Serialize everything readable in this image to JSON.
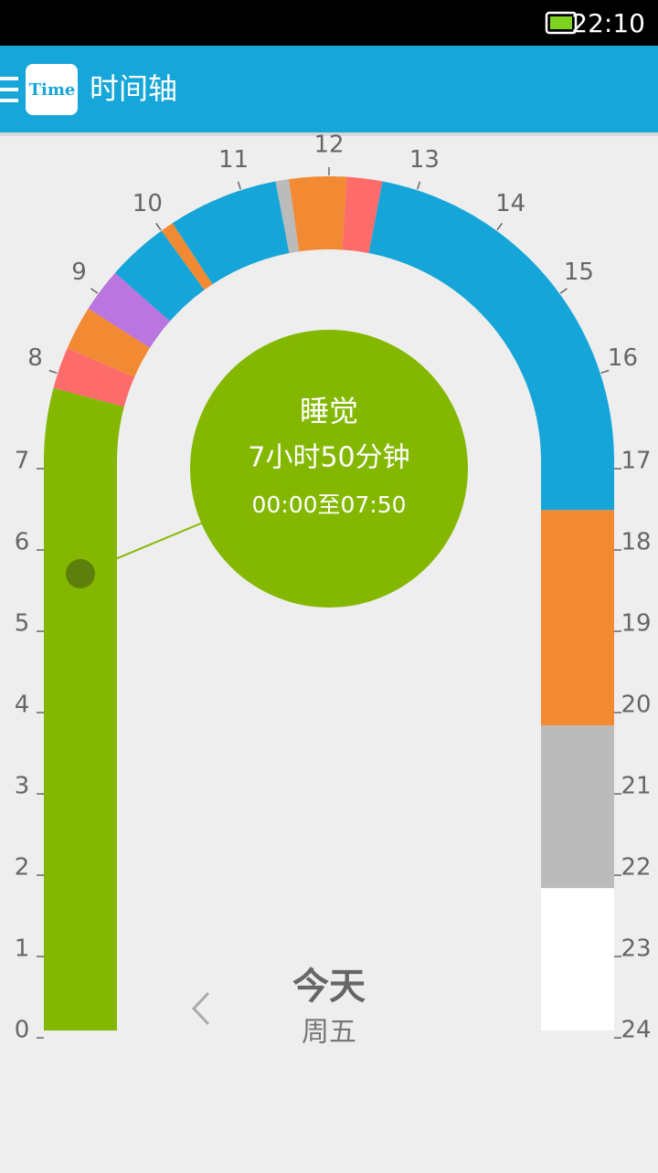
{
  "status_bar": {
    "time": "22:10"
  },
  "app_bar": {
    "icon_text": "Time",
    "title": "时间轴"
  },
  "timeline": {
    "hour_labels": [
      "0",
      "1",
      "2",
      "3",
      "4",
      "5",
      "6",
      "7",
      "8",
      "9",
      "10",
      "11",
      "12",
      "13",
      "14",
      "15",
      "16",
      "17",
      "18",
      "19",
      "20",
      "21",
      "22",
      "23",
      "24"
    ],
    "segments": [
      {
        "start": 0,
        "end": 7.83,
        "color": "#84b800"
      },
      {
        "start": 7.83,
        "end": 8.3,
        "color": "#fd6b6b"
      },
      {
        "start": 8.3,
        "end": 8.8,
        "color": "#f28a33"
      },
      {
        "start": 8.8,
        "end": 9.3,
        "color": "#ba75de"
      },
      {
        "start": 9.3,
        "end": 10.0,
        "color": "#16a5d8"
      },
      {
        "start": 10.0,
        "end": 10.15,
        "color": "#f28a33"
      },
      {
        "start": 10.15,
        "end": 11.4,
        "color": "#16a5d8"
      },
      {
        "start": 11.4,
        "end": 11.55,
        "color": "#bbbbbb"
      },
      {
        "start": 11.55,
        "end": 12.2,
        "color": "#f28a33"
      },
      {
        "start": 12.2,
        "end": 12.6,
        "color": "#fd6b6b"
      },
      {
        "start": 12.6,
        "end": 17.6,
        "color": "#16a5d8"
      },
      {
        "start": 17.6,
        "end": 20.25,
        "color": "#f28a33"
      },
      {
        "start": 20.25,
        "end": 22.25,
        "color": "#bbbbbb"
      },
      {
        "start": 22.25,
        "end": 24,
        "color": "#ffffff"
      }
    ]
  },
  "detail": {
    "activity": "睡觉",
    "duration": "7小时50分钟",
    "range": "00:00至07:50"
  },
  "day": {
    "label": "今天",
    "weekday": "周五"
  }
}
